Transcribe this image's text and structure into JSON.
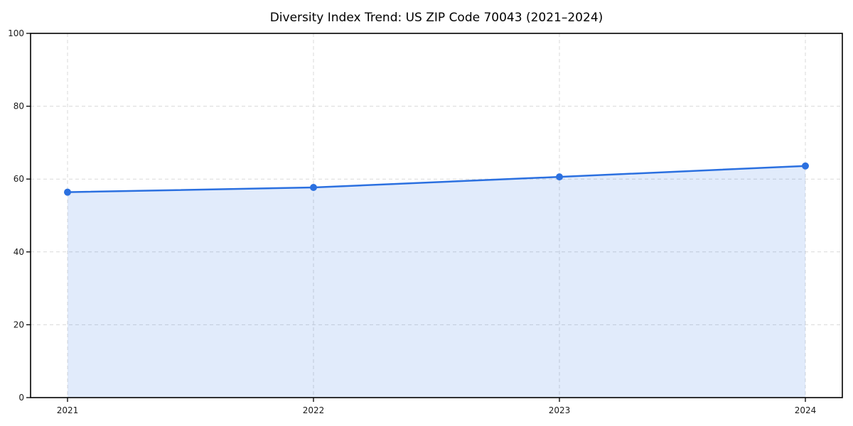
{
  "chart_data": {
    "type": "line",
    "title": "Diversity Index Trend: US ZIP Code 70043 (2021–2024)",
    "x": [
      "2021",
      "2022",
      "2023",
      "2024"
    ],
    "values": [
      56.4,
      57.7,
      60.6,
      63.6
    ],
    "xlabel": "",
    "ylabel": "",
    "ylim": [
      0,
      100
    ],
    "yticks": [
      0,
      20,
      40,
      60,
      80,
      100
    ],
    "grid": true,
    "grid_style": "dashed",
    "legend": "none",
    "area_fill": true,
    "marker": "circle",
    "colors": {
      "line": "#2b70e0",
      "marker": "#2b70e0",
      "fill": "#2b70e0",
      "fill_opacity": 0.14,
      "grid": "#d9d9d9",
      "axis": "#000000",
      "text": "#1a1a1a",
      "background": "#ffffff"
    }
  }
}
